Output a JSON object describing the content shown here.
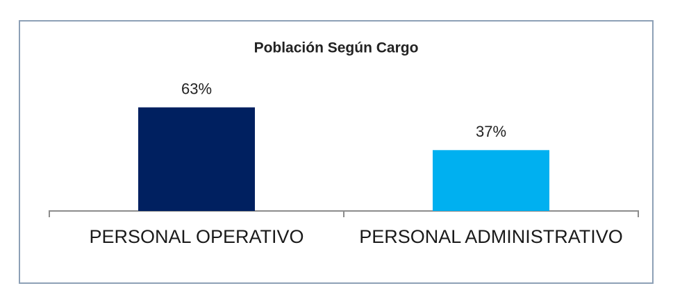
{
  "chart_data": {
    "type": "bar",
    "title": "Población Según Cargo",
    "categories": [
      "PERSONAL OPERATIVO",
      "PERSONAL ADMINISTRATIVO"
    ],
    "values": [
      63,
      37
    ],
    "value_labels": [
      "63%",
      "37%"
    ],
    "colors": [
      "#002060",
      "#00b0f0"
    ]
  }
}
